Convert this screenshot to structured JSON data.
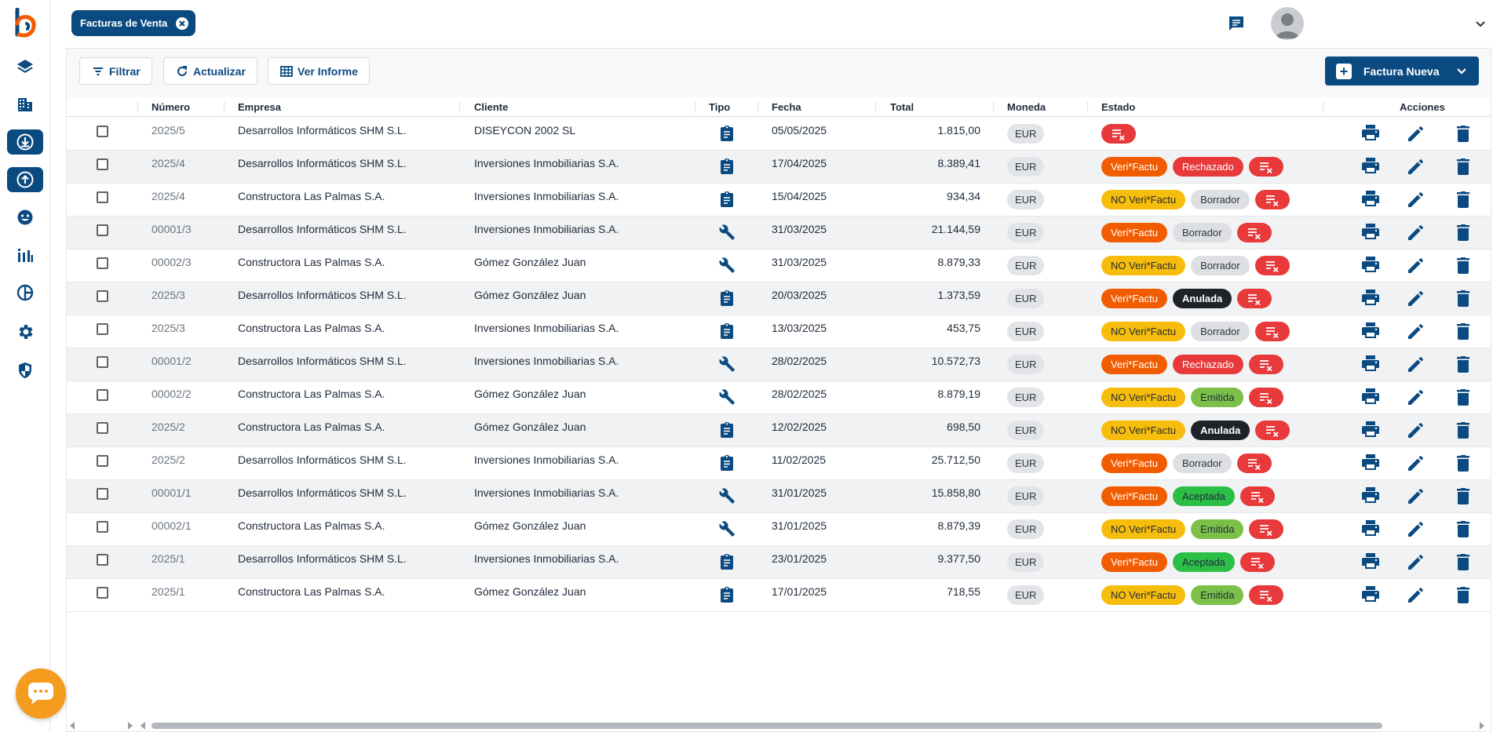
{
  "header": {
    "tab_label": "Facturas de Venta",
    "icons": [
      "close-icon",
      "chat-icon",
      "avatar",
      "chevron-down-icon"
    ]
  },
  "sidebar": {
    "items": [
      {
        "icon": "layers-icon",
        "active": false
      },
      {
        "icon": "building-icon",
        "active": false
      },
      {
        "icon": "download-circle-icon",
        "active": true
      },
      {
        "icon": "upload-circle-icon",
        "active": true
      },
      {
        "icon": "face-icon",
        "active": false
      },
      {
        "icon": "stats-icon",
        "active": false
      },
      {
        "icon": "chart-pie-icon",
        "active": false
      },
      {
        "icon": "gear-icon",
        "active": false
      },
      {
        "icon": "shield-icon",
        "active": false
      }
    ]
  },
  "toolbar": {
    "filter_label": "Filtrar",
    "refresh_label": "Actualizar",
    "report_label": "Ver Informe",
    "new_label": "Factura Nueva"
  },
  "table": {
    "headers": {
      "numero": "Número",
      "empresa": "Empresa",
      "cliente": "Cliente",
      "tipo": "Tipo",
      "fecha": "Fecha",
      "total": "Total",
      "moneda": "Moneda",
      "estado": "Estado",
      "acciones": "Acciones"
    },
    "rows": [
      {
        "numero": "2025/5",
        "empresa": "Desarrollos Informáticos SHM S.L.",
        "cliente": "DISEYCON 2002 SL",
        "tipo": "clipboard",
        "fecha": "05/05/2025",
        "total": "1.815,00",
        "moneda": "EUR",
        "estado": []
      },
      {
        "numero": "2025/4",
        "empresa": "Desarrollos Informáticos SHM S.L.",
        "cliente": "Inversiones Inmobiliarias S.A.",
        "tipo": "clipboard",
        "fecha": "17/04/2025",
        "total": "8.389,41",
        "moneda": "EUR",
        "estado": [
          "Veri*Factu",
          "Rechazado"
        ]
      },
      {
        "numero": "2025/4",
        "empresa": "Constructora Las Palmas S.A.",
        "cliente": "Inversiones Inmobiliarias S.A.",
        "tipo": "clipboard",
        "fecha": "15/04/2025",
        "total": "934,34",
        "moneda": "EUR",
        "estado": [
          "NO Veri*Factu",
          "Borrador"
        ]
      },
      {
        "numero": "00001/3",
        "empresa": "Desarrollos Informáticos SHM S.L.",
        "cliente": "Inversiones Inmobiliarias S.A.",
        "tipo": "wrench",
        "fecha": "31/03/2025",
        "total": "21.144,59",
        "moneda": "EUR",
        "estado": [
          "Veri*Factu",
          "Borrador"
        ]
      },
      {
        "numero": "00002/3",
        "empresa": "Constructora Las Palmas S.A.",
        "cliente": "Gómez González Juan",
        "tipo": "wrench",
        "fecha": "31/03/2025",
        "total": "8.879,33",
        "moneda": "EUR",
        "estado": [
          "NO Veri*Factu",
          "Borrador"
        ]
      },
      {
        "numero": "2025/3",
        "empresa": "Desarrollos Informáticos SHM S.L.",
        "cliente": "Gómez González Juan",
        "tipo": "clipboard",
        "fecha": "20/03/2025",
        "total": "1.373,59",
        "moneda": "EUR",
        "estado": [
          "Veri*Factu",
          "Anulada"
        ]
      },
      {
        "numero": "2025/3",
        "empresa": "Constructora Las Palmas S.A.",
        "cliente": "Inversiones Inmobiliarias S.A.",
        "tipo": "clipboard",
        "fecha": "13/03/2025",
        "total": "453,75",
        "moneda": "EUR",
        "estado": [
          "NO Veri*Factu",
          "Borrador"
        ]
      },
      {
        "numero": "00001/2",
        "empresa": "Desarrollos Informáticos SHM S.L.",
        "cliente": "Inversiones Inmobiliarias S.A.",
        "tipo": "wrench",
        "fecha": "28/02/2025",
        "total": "10.572,73",
        "moneda": "EUR",
        "estado": [
          "Veri*Factu",
          "Rechazado"
        ]
      },
      {
        "numero": "00002/2",
        "empresa": "Constructora Las Palmas S.A.",
        "cliente": "Gómez González Juan",
        "tipo": "wrench",
        "fecha": "28/02/2025",
        "total": "8.879,19",
        "moneda": "EUR",
        "estado": [
          "NO Veri*Factu",
          "Emitida"
        ]
      },
      {
        "numero": "2025/2",
        "empresa": "Constructora Las Palmas S.A.",
        "cliente": "Gómez González Juan",
        "tipo": "clipboard",
        "fecha": "12/02/2025",
        "total": "698,50",
        "moneda": "EUR",
        "estado": [
          "NO Veri*Factu",
          "Anulada"
        ]
      },
      {
        "numero": "2025/2",
        "empresa": "Desarrollos Informáticos SHM S.L.",
        "cliente": "Inversiones Inmobiliarias S.A.",
        "tipo": "clipboard",
        "fecha": "11/02/2025",
        "total": "25.712,50",
        "moneda": "EUR",
        "estado": [
          "Veri*Factu",
          "Borrador"
        ]
      },
      {
        "numero": "00001/1",
        "empresa": "Desarrollos Informáticos SHM S.L.",
        "cliente": "Inversiones Inmobiliarias S.A.",
        "tipo": "wrench",
        "fecha": "31/01/2025",
        "total": "15.858,80",
        "moneda": "EUR",
        "estado": [
          "Veri*Factu",
          "Aceptada"
        ]
      },
      {
        "numero": "00002/1",
        "empresa": "Constructora Las Palmas S.A.",
        "cliente": "Gómez González Juan",
        "tipo": "wrench",
        "fecha": "31/01/2025",
        "total": "8.879,39",
        "moneda": "EUR",
        "estado": [
          "NO Veri*Factu",
          "Emitida"
        ]
      },
      {
        "numero": "2025/1",
        "empresa": "Desarrollos Informáticos SHM S.L.",
        "cliente": "Inversiones Inmobiliarias S.A.",
        "tipo": "clipboard",
        "fecha": "23/01/2025",
        "total": "9.377,50",
        "moneda": "EUR",
        "estado": [
          "Veri*Factu",
          "Aceptada"
        ]
      },
      {
        "numero": "2025/1",
        "empresa": "Constructora Las Palmas S.A.",
        "cliente": "Gómez González Juan",
        "tipo": "clipboard",
        "fecha": "17/01/2025",
        "total": "718,55",
        "moneda": "EUR",
        "estado": [
          "NO Veri*Factu",
          "Emitida"
        ]
      }
    ]
  },
  "colors": {
    "primary": "#0b4a80",
    "veri": "#f25c00",
    "noveri": "#f7bd0c",
    "rechazado": "#e8393b",
    "borrador": "#dddfe2",
    "anulada": "#1f2329",
    "emitida": "#7cc04a",
    "aceptada": "#2bbf45",
    "chat_fab": "#f59b1e"
  }
}
